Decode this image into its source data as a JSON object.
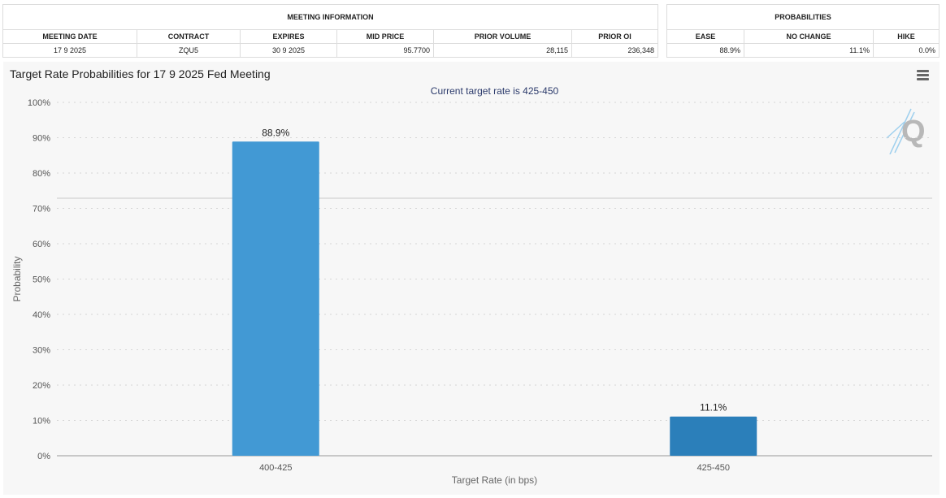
{
  "meeting_info": {
    "title": "MEETING INFORMATION",
    "headers": [
      "MEETING DATE",
      "CONTRACT",
      "EXPIRES",
      "MID PRICE",
      "PRIOR VOLUME",
      "PRIOR OI"
    ],
    "row": [
      "17 9 2025",
      "ZQU5",
      "30 9 2025",
      "95.7700",
      "28,115",
      "236,348"
    ]
  },
  "probabilities": {
    "title": "PROBABILITIES",
    "headers": [
      "EASE",
      "NO CHANGE",
      "HIKE"
    ],
    "row": [
      "88.9%",
      "11.1%",
      "0.0%"
    ]
  },
  "chart": {
    "menu_icon": "hamburger-menu-icon",
    "watermark_icon": "q-logo-icon"
  },
  "chart_data": {
    "type": "bar",
    "title": "Target Rate Probabilities for 17 9 2025 Fed Meeting",
    "subtitle": "Current target rate is 425-450",
    "categories": [
      "400-425",
      "425-450"
    ],
    "values": [
      88.9,
      11.1
    ],
    "data_labels": [
      "88.9%",
      "11.1%"
    ],
    "colors": [
      "#4299d4",
      "#2b7fba"
    ],
    "xlabel": "Target Rate (in bps)",
    "ylabel": "Probability",
    "ylim": [
      0,
      100
    ],
    "yticks": [
      "0%",
      "10%",
      "20%",
      "30%",
      "40%",
      "50%",
      "60%",
      "70%",
      "80%",
      "90%",
      "100%"
    ],
    "grid": true
  }
}
